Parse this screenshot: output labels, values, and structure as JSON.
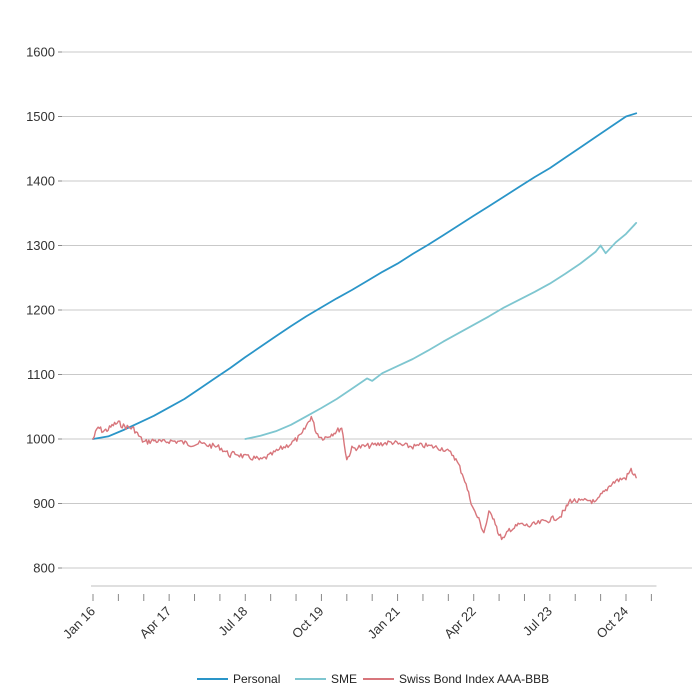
{
  "chart_data": {
    "type": "line",
    "title": "",
    "xlabel": "",
    "ylabel": "",
    "ylim": [
      800,
      1600
    ],
    "yticks": [
      800,
      900,
      1000,
      1100,
      1200,
      1300,
      1400,
      1500,
      1600
    ],
    "xticks": [
      "Jan 16",
      "Apr 17",
      "Jul 18",
      "Oct 19",
      "Jan 21",
      "Apr 22",
      "Jul 23",
      "Oct 24"
    ],
    "grid": "horizontal",
    "legend": "bottom-center",
    "colors": {
      "Personal": "#2a95c8",
      "SME": "#7ec6d0",
      "Swiss Bond Index AAA-BBB": "#d8767c"
    },
    "series": [
      {
        "name": "Personal",
        "points": [
          [
            "Jan 16",
            1000
          ],
          [
            "Apr 16",
            1004
          ],
          [
            "Jul 16",
            1014
          ],
          [
            "Oct 16",
            1025
          ],
          [
            "Jan 17",
            1036
          ],
          [
            "Apr 17",
            1049
          ],
          [
            "Jul 17",
            1062
          ],
          [
            "Oct 17",
            1078
          ],
          [
            "Jan 18",
            1094
          ],
          [
            "Apr 18",
            1110
          ],
          [
            "Jul 18",
            1127
          ],
          [
            "Oct 18",
            1143
          ],
          [
            "Jan 19",
            1159
          ],
          [
            "Apr 19",
            1175
          ],
          [
            "Jul 19",
            1190
          ],
          [
            "Oct 19",
            1204
          ],
          [
            "Jan 20",
            1218
          ],
          [
            "Apr 20",
            1231
          ],
          [
            "Jul 20",
            1245
          ],
          [
            "Oct 20",
            1259
          ],
          [
            "Jan 21",
            1272
          ],
          [
            "Apr 21",
            1287
          ],
          [
            "Jul 21",
            1301
          ],
          [
            "Oct 21",
            1316
          ],
          [
            "Jan 22",
            1331
          ],
          [
            "Apr 22",
            1346
          ],
          [
            "Jul 22",
            1361
          ],
          [
            "Oct 22",
            1376
          ],
          [
            "Jan 23",
            1391
          ],
          [
            "Apr 23",
            1406
          ],
          [
            "Jul 23",
            1420
          ],
          [
            "Oct 23",
            1436
          ],
          [
            "Jan 24",
            1452
          ],
          [
            "Apr 24",
            1468
          ],
          [
            "Jul 24",
            1484
          ],
          [
            "Oct 24",
            1500
          ],
          [
            "Dec 24",
            1505
          ]
        ]
      },
      {
        "name": "SME",
        "points": [
          [
            "Jul 18",
            1000
          ],
          [
            "Oct 18",
            1005
          ],
          [
            "Jan 19",
            1012
          ],
          [
            "Apr 19",
            1022
          ],
          [
            "Jul 19",
            1035
          ],
          [
            "Oct 19",
            1048
          ],
          [
            "Jan 20",
            1062
          ],
          [
            "Apr 20",
            1078
          ],
          [
            "Jul 20",
            1094
          ],
          [
            "Aug 20",
            1090
          ],
          [
            "Oct 20",
            1102
          ],
          [
            "Jan 21",
            1113
          ],
          [
            "Apr 21",
            1124
          ],
          [
            "Jul 21",
            1137
          ],
          [
            "Oct 21",
            1151
          ],
          [
            "Jan 22",
            1164
          ],
          [
            "Apr 22",
            1177
          ],
          [
            "Jul 22",
            1190
          ],
          [
            "Oct 22",
            1204
          ],
          [
            "Jan 23",
            1216
          ],
          [
            "Apr 23",
            1228
          ],
          [
            "Jul 23",
            1241
          ],
          [
            "Oct 23",
            1256
          ],
          [
            "Jan 24",
            1272
          ],
          [
            "Apr 24",
            1290
          ],
          [
            "May 24",
            1300
          ],
          [
            "Jun 24",
            1288
          ],
          [
            "Aug 24",
            1305
          ],
          [
            "Oct 24",
            1318
          ],
          [
            "Dec 24",
            1335
          ]
        ]
      },
      {
        "name": "Swiss Bond Index AAA-BBB",
        "points": [
          [
            "Jan 16",
            1000
          ],
          [
            "Feb 16",
            1018
          ],
          [
            "Mar 16",
            1012
          ],
          [
            "Apr 16",
            1015
          ],
          [
            "May 16",
            1022
          ],
          [
            "Jun 16",
            1025
          ],
          [
            "Jul 16",
            1020
          ],
          [
            "Aug 16",
            1018
          ],
          [
            "Sep 16",
            1016
          ],
          [
            "Oct 16",
            1005
          ],
          [
            "Nov 16",
            995
          ],
          [
            "Dec 16",
            996
          ],
          [
            "Jan 17",
            998
          ],
          [
            "Feb 17",
            996
          ],
          [
            "Mar 17",
            995
          ],
          [
            "Apr 17",
            997
          ],
          [
            "Jun 17",
            996
          ],
          [
            "Aug 17",
            992
          ],
          [
            "Oct 17",
            993
          ],
          [
            "Dec 17",
            990
          ],
          [
            "Feb 18",
            987
          ],
          [
            "Apr 18",
            975
          ],
          [
            "May 18",
            978
          ],
          [
            "Jul 18",
            972
          ],
          [
            "Sep 18",
            970
          ],
          [
            "Oct 18",
            967
          ],
          [
            "Dec 18",
            975
          ],
          [
            "Feb 19",
            985
          ],
          [
            "Apr 19",
            993
          ],
          [
            "Jun 19",
            1005
          ],
          [
            "Jul 19",
            1020
          ],
          [
            "Aug 19",
            1035
          ],
          [
            "Sep 19",
            1010
          ],
          [
            "Oct 19",
            1002
          ],
          [
            "Nov 19",
            1003
          ],
          [
            "Dec 19",
            1008
          ],
          [
            "Jan 20",
            1012
          ],
          [
            "Feb 20",
            1018
          ],
          [
            "Mar 20",
            968
          ],
          [
            "Apr 20",
            985
          ],
          [
            "Jun 20",
            988
          ],
          [
            "Aug 20",
            990
          ],
          [
            "Oct 20",
            993
          ],
          [
            "Dec 20",
            995
          ],
          [
            "Feb 21",
            990
          ],
          [
            "Apr 21",
            988
          ],
          [
            "Jun 21",
            990
          ],
          [
            "Aug 21",
            988
          ],
          [
            "Oct 21",
            985
          ],
          [
            "Dec 21",
            975
          ],
          [
            "Jan 22",
            960
          ],
          [
            "Feb 22",
            942
          ],
          [
            "Mar 22",
            915
          ],
          [
            "Apr 22",
            890
          ],
          [
            "May 22",
            875
          ],
          [
            "Jun 22",
            855
          ],
          [
            "Jul 22",
            885
          ],
          [
            "Aug 22",
            878
          ],
          [
            "Sep 22",
            850
          ],
          [
            "Oct 22",
            845
          ],
          [
            "Nov 22",
            860
          ],
          [
            "Dec 22",
            862
          ],
          [
            "Jan 23",
            868
          ],
          [
            "Mar 23",
            865
          ],
          [
            "May 23",
            870
          ],
          [
            "Jul 23",
            875
          ],
          [
            "Sep 23",
            880
          ],
          [
            "Oct 23",
            890
          ],
          [
            "Nov 23",
            905
          ],
          [
            "Jan 24",
            903
          ],
          [
            "Mar 24",
            905
          ],
          [
            "Apr 24",
            900
          ],
          [
            "May 24",
            912
          ],
          [
            "Jun 24",
            920
          ],
          [
            "Jul 24",
            930
          ],
          [
            "Aug 24",
            935
          ],
          [
            "Oct 24",
            940
          ],
          [
            "Nov 24",
            952
          ],
          [
            "Dec 24",
            940
          ]
        ]
      }
    ]
  }
}
